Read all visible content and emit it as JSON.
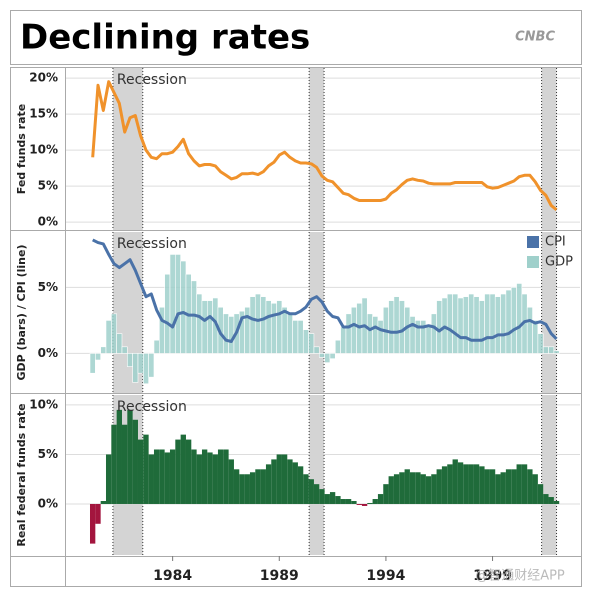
{
  "chart_data": {
    "type": "panels",
    "title": "Declining rates",
    "source": "CNBC",
    "watermark": "@智通财经APP",
    "x": [
      1980.25,
      1980.5,
      1980.75,
      1981,
      1981.25,
      1981.5,
      1981.75,
      1982,
      1982.25,
      1982.5,
      1982.75,
      1983,
      1983.25,
      1983.5,
      1983.75,
      1984,
      1984.25,
      1984.5,
      1984.75,
      1985,
      1985.25,
      1985.5,
      1985.75,
      1986,
      1986.25,
      1986.5,
      1986.75,
      1987,
      1987.25,
      1987.5,
      1987.75,
      1988,
      1988.25,
      1988.5,
      1988.75,
      1989,
      1989.25,
      1989.5,
      1989.75,
      1990,
      1990.25,
      1990.5,
      1990.75,
      1991,
      1991.25,
      1991.5,
      1991.75,
      1992,
      1992.25,
      1992.5,
      1992.75,
      1993,
      1993.25,
      1993.5,
      1993.75,
      1994,
      1994.25,
      1994.5,
      1994.75,
      1995,
      1995.25,
      1995.5,
      1995.75,
      1996,
      1996.25,
      1996.5,
      1996.75,
      1997,
      1997.25,
      1997.5,
      1997.75,
      1998,
      1998.25,
      1998.5,
      1998.75,
      1999,
      1999.25,
      1999.5,
      1999.75,
      2000,
      2000.25,
      2000.5,
      2000.75,
      2001,
      2001.25,
      2001.5,
      2001.75,
      2002
    ],
    "xlim": [
      1979.0,
      2003.1
    ],
    "xticks": [
      1984,
      1989,
      1994,
      1999
    ],
    "recessions": {
      "label": "Recession",
      "color": "#d4d4d4",
      "spans": [
        [
          1981.2,
          1982.6
        ],
        [
          1990.4,
          1991.1
        ],
        [
          2001.3,
          2002.0
        ]
      ]
    },
    "panels": [
      {
        "ylabel": "Fed funds rate",
        "ylim": [
          -1.1,
          21.4
        ],
        "grid": true,
        "yticks": [
          {
            "value": 0,
            "label": "0%"
          },
          {
            "value": 5,
            "label": "5%"
          },
          {
            "value": 10,
            "label": "10%"
          },
          {
            "value": 15,
            "label": "15%"
          },
          {
            "value": 20,
            "label": "20%"
          }
        ],
        "series": [
          {
            "type": "line",
            "color": "#f0922b",
            "values": [
              9,
              19,
              15.5,
              19.5,
              18,
              16.5,
              12.5,
              14.5,
              14.8,
              12,
              10,
              9,
              8.8,
              9.5,
              9.5,
              9.7,
              10.5,
              11.5,
              9.5,
              8.5,
              7.8,
              8,
              8,
              7.8,
              7,
              6.5,
              6,
              6.2,
              6.7,
              6.7,
              6.8,
              6.6,
              7,
              7.8,
              8.3,
              9.3,
              9.7,
              9,
              8.5,
              8.2,
              8.2,
              8.1,
              7.6,
              6.4,
              5.8,
              5.6,
              4.8,
              4,
              3.8,
              3.3,
              3,
              3,
              3,
              3,
              3,
              3.2,
              4,
              4.5,
              5.2,
              5.8,
              6,
              5.8,
              5.7,
              5.4,
              5.3,
              5.3,
              5.3,
              5.3,
              5.5,
              5.5,
              5.5,
              5.5,
              5.5,
              5.5,
              4.9,
              4.7,
              4.8,
              5.1,
              5.4,
              5.7,
              6.3,
              6.5,
              6.5,
              5.6,
              4.4,
              3.7,
              2.3,
              1.7
            ]
          }
        ]
      },
      {
        "ylabel": "GDP (bars) / CPI (line)",
        "ylim": [
          -3.0,
          9.2
        ],
        "grid": true,
        "legend": "top-right",
        "yticks": [
          {
            "value": 0,
            "label": "0%"
          },
          {
            "value": 5,
            "label": "5%"
          }
        ],
        "series": [
          {
            "name": "CPI",
            "type": "line",
            "color": "#4a72a8",
            "values": [
              8.6,
              8.4,
              8.3,
              7.5,
              6.8,
              6.5,
              6.8,
              7.1,
              6.3,
              5.3,
              4.3,
              4.5,
              3.3,
              2.5,
              2.3,
              2.0,
              3.0,
              3.1,
              2.9,
              2.9,
              2.8,
              2.5,
              2.8,
              2.4,
              1.5,
              1.0,
              0.9,
              1.6,
              2.7,
              2.8,
              2.6,
              2.5,
              2.6,
              2.8,
              2.9,
              3.0,
              3.2,
              3.0,
              3.0,
              3.2,
              3.5,
              4.1,
              4.3,
              3.9,
              3.2,
              2.8,
              2.7,
              2.0,
              2.0,
              2.2,
              2.0,
              2.1,
              1.8,
              2.0,
              1.8,
              1.7,
              1.6,
              1.6,
              1.7,
              2.0,
              2.2,
              2.0,
              2.0,
              2.1,
              2.0,
              1.7,
              2.0,
              1.8,
              1.5,
              1.2,
              1.2,
              1.0,
              1.0,
              1.0,
              1.2,
              1.2,
              1.4,
              1.4,
              1.5,
              1.8,
              2.0,
              2.4,
              2.5,
              2.3,
              2.4,
              2.2,
              1.5,
              1.1
            ]
          },
          {
            "name": "GDP",
            "type": "bar",
            "color": "#9fd0cb",
            "values": [
              -1.5,
              -0.5,
              0.5,
              2.5,
              3.0,
              1.5,
              0.5,
              -1.0,
              -2.2,
              -1.5,
              -2.3,
              -1.8,
              1.0,
              3.5,
              6.0,
              7.5,
              7.5,
              7.0,
              6.0,
              5.5,
              4.5,
              4.0,
              4.0,
              4.2,
              3.5,
              3.0,
              2.8,
              3.0,
              3.2,
              3.5,
              4.3,
              4.5,
              4.3,
              4.0,
              3.8,
              4.0,
              3.5,
              3.0,
              2.5,
              2.5,
              1.8,
              1.5,
              0.5,
              -0.3,
              -0.7,
              -0.4,
              1.0,
              2.0,
              3.0,
              3.5,
              3.8,
              4.2,
              3.0,
              2.8,
              2.5,
              3.5,
              4.0,
              4.3,
              4.0,
              3.5,
              2.8,
              2.5,
              2.5,
              2.0,
              3.0,
              4.0,
              4.2,
              4.5,
              4.5,
              4.2,
              4.3,
              4.5,
              4.3,
              4.0,
              4.5,
              4.5,
              4.3,
              4.5,
              4.8,
              5.0,
              5.3,
              4.5,
              3.5,
              2.5,
              1.5,
              0.5,
              0.5,
              0.2
            ]
          }
        ]
      },
      {
        "ylabel": "Real federal funds rate",
        "ylim": [
          -5.15,
          11.0
        ],
        "grid": true,
        "yticks": [
          {
            "value": 0,
            "label": "0%"
          },
          {
            "value": 5,
            "label": "5%"
          },
          {
            "value": 10,
            "label": "10%"
          }
        ],
        "series": [
          {
            "type": "bar",
            "color": "#1f6b3a",
            "negative_color": "#a3153e",
            "values": [
              -4,
              -2,
              0.3,
              5,
              8,
              9.5,
              8,
              9.5,
              8.5,
              6.5,
              7,
              5,
              5.5,
              5.5,
              5.2,
              5.5,
              6.5,
              7,
              6.5,
              5.5,
              5,
              5.5,
              5.2,
              5,
              5.5,
              5.5,
              4.5,
              3.5,
              3,
              3,
              3.2,
              3.5,
              3.5,
              4,
              4.5,
              5,
              5,
              4.5,
              4.2,
              3.8,
              3,
              2.5,
              2,
              1.5,
              1,
              1.2,
              0.8,
              0.5,
              0.5,
              0.3,
              -0.1,
              -0.2,
              0.1,
              0.5,
              1,
              2,
              2.8,
              3,
              3.2,
              3.5,
              3.2,
              3.2,
              3,
              2.8,
              3,
              3.5,
              3.8,
              4,
              4.5,
              4.2,
              4,
              4,
              4,
              3.8,
              3.5,
              3.5,
              3,
              3.2,
              3.5,
              3.5,
              4,
              4,
              3.5,
              3,
              2,
              1,
              0.7,
              0.3
            ]
          }
        ]
      }
    ]
  }
}
